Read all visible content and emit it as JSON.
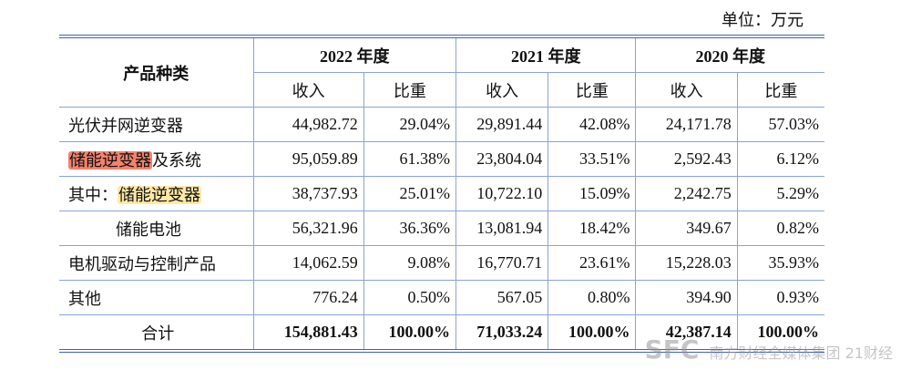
{
  "unit": "单位：万元",
  "table": {
    "header": {
      "category": "产品种类",
      "years": [
        {
          "year": "2022 年度",
          "cols": [
            "收入",
            "比重"
          ]
        },
        {
          "year": "2021 年度",
          "cols": [
            "收入",
            "比重"
          ]
        },
        {
          "year": "2020 年度",
          "cols": [
            "收入",
            "比重"
          ]
        }
      ]
    },
    "rows": [
      {
        "label": [
          {
            "text": "光伏并网逆变器"
          }
        ],
        "cells": [
          "44,982.72",
          "29.04%",
          "29,891.44",
          "42.08%",
          "24,171.78",
          "57.03%"
        ]
      },
      {
        "label": [
          {
            "text": "储能逆变器",
            "highlight": "#f4826e"
          },
          {
            "text": "及系统"
          }
        ],
        "cells": [
          "95,059.89",
          "61.38%",
          "23,804.04",
          "33.51%",
          "2,592.43",
          "6.12%"
        ]
      },
      {
        "label": [
          {
            "text": "其中："
          },
          {
            "text": "储能逆变器",
            "highlight": "#fde9a6"
          }
        ],
        "cells": [
          "38,737.93",
          "25.01%",
          "10,722.10",
          "15.09%",
          "2,242.75",
          "5.29%"
        ]
      },
      {
        "label": [
          {
            "text": "储能电池"
          }
        ],
        "indent": true,
        "cells": [
          "56,321.96",
          "36.36%",
          "13,081.94",
          "18.42%",
          "349.67",
          "0.82%"
        ]
      },
      {
        "label": [
          {
            "text": "电机驱动与控制产品"
          }
        ],
        "cells": [
          "14,062.59",
          "9.08%",
          "16,770.71",
          "23.61%",
          "15,228.03",
          "35.93%"
        ]
      },
      {
        "label": [
          {
            "text": "其他"
          }
        ],
        "cells": [
          "776.24",
          "0.50%",
          "567.05",
          "0.80%",
          "394.90",
          "0.93%"
        ]
      },
      {
        "label": [
          {
            "text": "合计"
          }
        ],
        "total": true,
        "cells": [
          "154,881.43",
          "100.00%",
          "71,033.24",
          "100.00%",
          "42,387.14",
          "100.00%"
        ]
      }
    ]
  },
  "watermark": {
    "logo": "SFC",
    "group": "南方财经全媒体集团",
    "brand": "21财经"
  }
}
